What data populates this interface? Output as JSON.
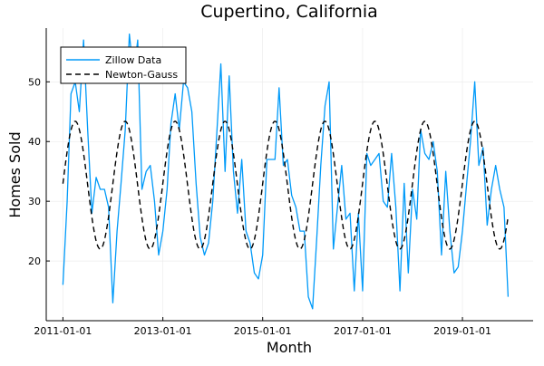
{
  "chart_data": {
    "type": "line",
    "title": "Cupertino, California",
    "xlabel": "Month",
    "ylabel": "Homes Sold",
    "x_ticks": [
      "2011-01-01",
      "2013-01-01",
      "2015-01-01",
      "2017-01-01",
      "2019-01-01"
    ],
    "y_ticks": [
      20,
      30,
      40,
      50
    ],
    "xlim": [
      "2010-09-01",
      "2020-06-01"
    ],
    "ylim": [
      10,
      59
    ],
    "grid": true,
    "legend": {
      "placement": "top-left"
    },
    "series": [
      {
        "name": "Zillow Data",
        "color": "#009af9",
        "style": "solid",
        "x": [
          "2011-01-01",
          "2011-02-01",
          "2011-03-01",
          "2011-04-01",
          "2011-05-01",
          "2011-06-01",
          "2011-07-01",
          "2011-08-01",
          "2011-09-01",
          "2011-10-01",
          "2011-11-01",
          "2011-12-01",
          "2012-01-01",
          "2012-02-01",
          "2012-03-01",
          "2012-04-01",
          "2012-05-01",
          "2012-06-01",
          "2012-07-01",
          "2012-08-01",
          "2012-09-01",
          "2012-10-01",
          "2012-11-01",
          "2012-12-01",
          "2013-01-01",
          "2013-02-01",
          "2013-03-01",
          "2013-04-01",
          "2013-05-01",
          "2013-06-01",
          "2013-07-01",
          "2013-08-01",
          "2013-09-01",
          "2013-10-01",
          "2013-11-01",
          "2013-12-01",
          "2014-01-01",
          "2014-02-01",
          "2014-03-01",
          "2014-04-01",
          "2014-05-01",
          "2014-06-01",
          "2014-07-01",
          "2014-08-01",
          "2014-09-01",
          "2014-10-01",
          "2014-11-01",
          "2014-12-01",
          "2015-01-01",
          "2015-02-01",
          "2015-03-01",
          "2015-04-01",
          "2015-05-01",
          "2015-06-01",
          "2015-07-01",
          "2015-08-01",
          "2015-09-01",
          "2015-10-01",
          "2015-11-01",
          "2015-12-01",
          "2016-01-01",
          "2016-02-01",
          "2016-03-01",
          "2016-04-01",
          "2016-05-01",
          "2016-06-01",
          "2016-07-01",
          "2016-08-01",
          "2016-09-01",
          "2016-10-01",
          "2016-11-01",
          "2016-12-01",
          "2017-01-01",
          "2017-02-01",
          "2017-03-01",
          "2017-04-01",
          "2017-05-01",
          "2017-06-01",
          "2017-07-01",
          "2017-08-01",
          "2017-09-01",
          "2017-10-01",
          "2017-11-01",
          "2017-12-01",
          "2018-01-01",
          "2018-02-01",
          "2018-03-01",
          "2018-04-01",
          "2018-05-01",
          "2018-06-01",
          "2018-07-01",
          "2018-08-01",
          "2018-09-01",
          "2018-10-01",
          "2018-11-01",
          "2018-12-01",
          "2019-01-01",
          "2019-02-01",
          "2019-03-01",
          "2019-04-01",
          "2019-05-01",
          "2019-06-01",
          "2019-07-01",
          "2019-08-01",
          "2019-09-01",
          "2019-10-01",
          "2019-11-01",
          "2019-12-01"
        ],
        "values": [
          16,
          30,
          48,
          50,
          45,
          57,
          42,
          28,
          34,
          32,
          32,
          29,
          13,
          25,
          33,
          42,
          58,
          51,
          57,
          32,
          35,
          36,
          30,
          21,
          25,
          32,
          43,
          48,
          42,
          50,
          49,
          45,
          33,
          24,
          21,
          23,
          30,
          42,
          53,
          35,
          51,
          35,
          28,
          37,
          25,
          23,
          18,
          17,
          21,
          37,
          37,
          37,
          49,
          36,
          37,
          31,
          29,
          25,
          25,
          14,
          12,
          24,
          36,
          46,
          50,
          22,
          29,
          36,
          27,
          28,
          15,
          28,
          15,
          38,
          36,
          37,
          38,
          30,
          29,
          38,
          29,
          15,
          33,
          18,
          32,
          27,
          42,
          38,
          37,
          40,
          35,
          21,
          35,
          25,
          18,
          19,
          25,
          33,
          40,
          50,
          36,
          39,
          26,
          32,
          36,
          32,
          29,
          14
        ]
      },
      {
        "name": "Newton-Gauss",
        "color": "#000000",
        "style": "dashed",
        "model": "sinusoid",
        "baseline": 32.7,
        "amplitude": 10.7,
        "period_months": 12,
        "peak_month": "2011-04-01",
        "x_start": "2011-01-01",
        "x_end": "2019-12-01"
      }
    ]
  }
}
